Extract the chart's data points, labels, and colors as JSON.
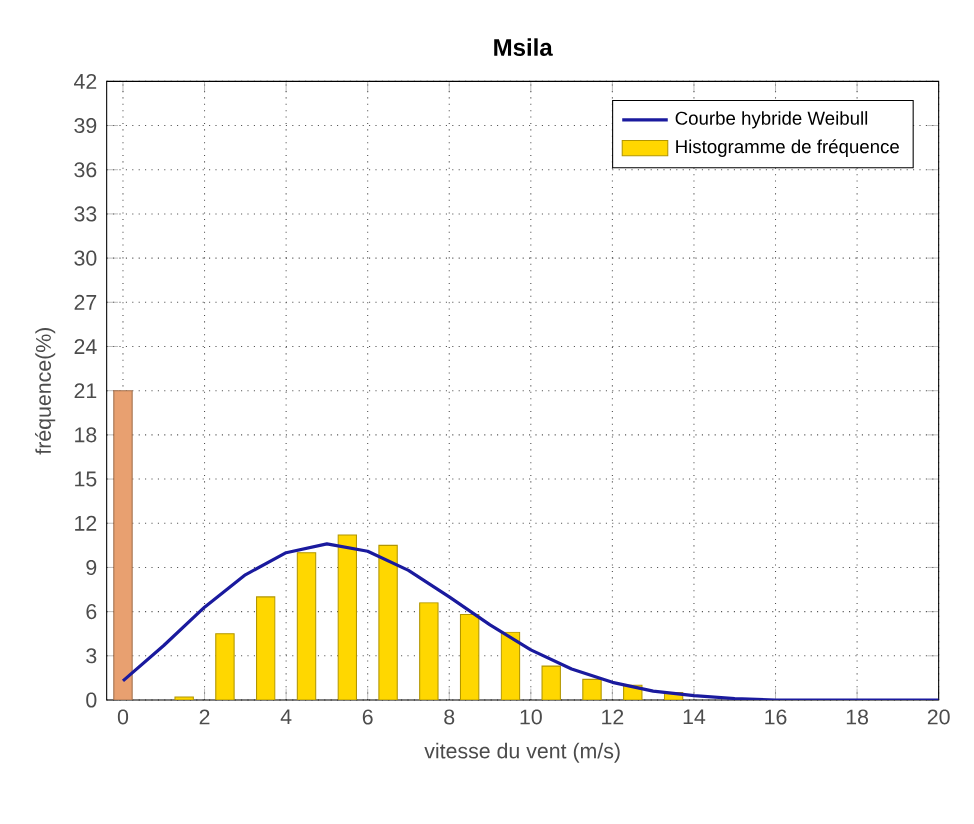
{
  "chart_data": {
    "type": "bar",
    "title": "Msila",
    "xlabel": "vitesse du vent (m/s)",
    "ylabel": "fréquence(%)",
    "series": [
      {
        "name": "Courbe hybride Weibull",
        "type": "line",
        "color": "#1a1a9e",
        "x": [
          0,
          1,
          2,
          3,
          4,
          5,
          6,
          7,
          8,
          9,
          10,
          11,
          12,
          13,
          14,
          15,
          16,
          18,
          20
        ],
        "values": [
          1.3,
          3.7,
          6.3,
          8.5,
          10.0,
          10.6,
          10.1,
          8.8,
          7.0,
          5.1,
          3.4,
          2.1,
          1.2,
          0.6,
          0.3,
          0.1,
          0,
          0,
          0
        ]
      },
      {
        "name": "Histogramme de fréquence",
        "color": "#ffd700",
        "x": [
          0,
          1.5,
          2.5,
          3.5,
          4.5,
          5.5,
          6.5,
          7.5,
          8.5,
          9.5,
          10.5,
          11.5,
          12.5,
          13.5
        ],
        "values": [
          21,
          0.2,
          4.5,
          7,
          10,
          11.2,
          10.5,
          6.6,
          5.8,
          4.6,
          2.3,
          1.4,
          1.0,
          0.5
        ],
        "colors": [
          "#e8a070",
          "#ffd700",
          "#ffd700",
          "#ffd700",
          "#ffd700",
          "#ffd700",
          "#ffd700",
          "#ffd700",
          "#ffd700",
          "#ffd700",
          "#ffd700",
          "#ffd700",
          "#ffd700",
          "#ffd700"
        ]
      }
    ],
    "xlim": [
      -0.4,
      20
    ],
    "xticks": [
      0,
      2,
      4,
      6,
      8,
      10,
      12,
      14,
      16,
      18,
      20
    ],
    "ylim": [
      0,
      42
    ],
    "yticks": [
      0,
      3,
      6,
      9,
      12,
      15,
      18,
      21,
      24,
      27,
      30,
      33,
      36,
      39,
      42
    ],
    "grid": true,
    "legend": "top right",
    "line_style": "solid",
    "marker": "none"
  }
}
